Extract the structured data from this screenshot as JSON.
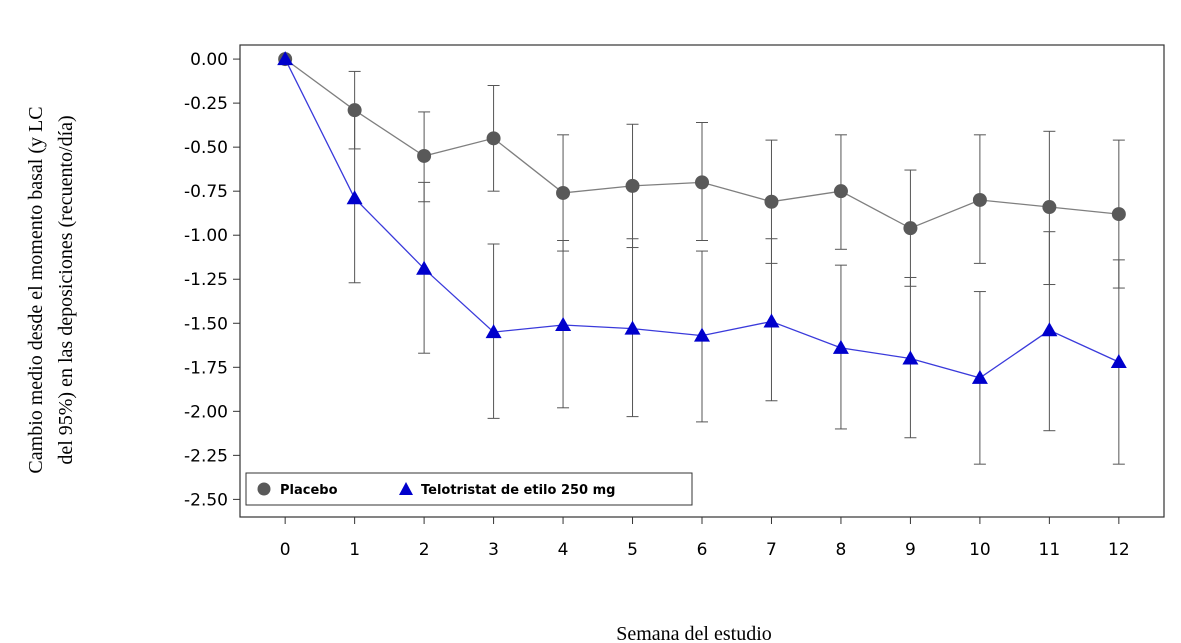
{
  "chart_data": {
    "type": "line",
    "xlabel": "Semana del estudio",
    "ylabel_line1": "Cambio medio desde el momento basal (y LC",
    "ylabel_line2": "del 95%) en las deposiciones (recuento/día)",
    "x": [
      0,
      1,
      2,
      3,
      4,
      5,
      6,
      7,
      8,
      9,
      10,
      11,
      12
    ],
    "xlim": [
      -0.65,
      12.65
    ],
    "ylim": [
      -2.6,
      0.08
    ],
    "x_ticks": [
      "0",
      "1",
      "2",
      "3",
      "4",
      "5",
      "6",
      "7",
      "8",
      "9",
      "10",
      "11",
      "12"
    ],
    "y_ticks": [
      {
        "v": 0.0,
        "t": "0.00"
      },
      {
        "v": -0.25,
        "t": "-0.25"
      },
      {
        "v": -0.5,
        "t": "-0.50"
      },
      {
        "v": -0.75,
        "t": "-0.75"
      },
      {
        "v": -1.0,
        "t": "-1.00"
      },
      {
        "v": -1.25,
        "t": "-1.25"
      },
      {
        "v": -1.5,
        "t": "-1.50"
      },
      {
        "v": -1.75,
        "t": "-1.75"
      },
      {
        "v": -2.0,
        "t": "-2.00"
      },
      {
        "v": -2.25,
        "t": "-2.25"
      },
      {
        "v": -2.5,
        "t": "-2.50"
      }
    ],
    "grid": false,
    "legend_position": "bottom-left",
    "series": [
      {
        "name": "Placebo",
        "marker": "circle",
        "color": "#595959",
        "line_color": "#7f7f7f",
        "values": [
          0.0,
          -0.29,
          -0.55,
          -0.45,
          -0.76,
          -0.72,
          -0.7,
          -0.81,
          -0.75,
          -0.96,
          -0.8,
          -0.84,
          -0.88
        ],
        "ci_low": [
          0.0,
          -0.51,
          -0.81,
          -0.75,
          -1.09,
          -1.07,
          -1.03,
          -1.16,
          -1.08,
          -1.29,
          -1.16,
          -1.28,
          -1.3
        ],
        "ci_high": [
          0.0,
          -0.07,
          -0.3,
          -0.15,
          -0.43,
          -0.37,
          -0.36,
          -0.46,
          -0.43,
          -0.63,
          -0.43,
          -0.41,
          -0.46
        ]
      },
      {
        "name": "Telotristat de etilo 250 mg",
        "marker": "triangle",
        "color": "#0000cc",
        "line_color": "#3a3adb",
        "values": [
          0.0,
          -0.79,
          -1.19,
          -1.55,
          -1.51,
          -1.53,
          -1.57,
          -1.49,
          -1.64,
          -1.7,
          -1.81,
          -1.54,
          -1.72
        ],
        "ci_low": [
          0.0,
          -1.27,
          -1.67,
          -2.04,
          -1.98,
          -2.03,
          -2.06,
          -1.94,
          -2.1,
          -2.15,
          -2.3,
          -2.11,
          -2.3
        ],
        "ci_high": [
          0.0,
          -0.3,
          -0.7,
          -1.05,
          -1.03,
          -1.02,
          -1.09,
          -1.02,
          -1.17,
          -1.24,
          -1.32,
          -0.98,
          -1.14
        ]
      }
    ]
  }
}
